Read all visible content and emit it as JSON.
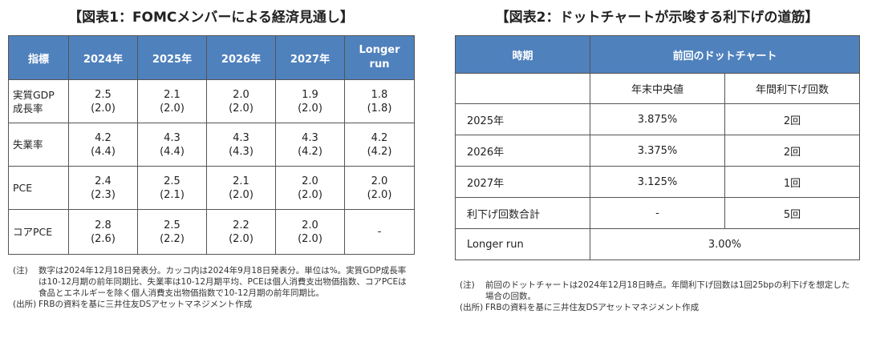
{
  "figure1": {
    "title": "【図表1：FOMCメンバーによる経済見通し】",
    "headers": [
      "指標",
      "2024年",
      "2025年",
      "2026年",
      "2027年",
      "Longer run"
    ],
    "rows": [
      {
        "label": "実質GDP成長率",
        "values": [
          [
            "2.5",
            "(2.0)"
          ],
          [
            "2.1",
            "(2.0)"
          ],
          [
            "2.0",
            "(2.0)"
          ],
          [
            "1.9",
            "(2.0)"
          ],
          [
            "1.8",
            "(1.8)"
          ]
        ]
      },
      {
        "label": "失業率",
        "values": [
          [
            "4.2",
            "(4.4)"
          ],
          [
            "4.3",
            "(4.4)"
          ],
          [
            "4.3",
            "(4.3)"
          ],
          [
            "4.3",
            "(4.2)"
          ],
          [
            "4.2",
            "(4.2)"
          ]
        ]
      },
      {
        "label": "PCE",
        "values": [
          [
            "2.4",
            "(2.3)"
          ],
          [
            "2.5",
            "(2.1)"
          ],
          [
            "2.1",
            "(2.0)"
          ],
          [
            "2.0",
            "(2.0)"
          ],
          [
            "2.0",
            "(2.0)"
          ]
        ]
      },
      {
        "label": "コアPCE",
        "values": [
          [
            "2.8",
            "(2.6)"
          ],
          [
            "2.5",
            "(2.2)"
          ],
          [
            "2.2",
            "(2.0)"
          ],
          [
            "2.0",
            "(2.0)"
          ],
          [
            "-",
            ""
          ]
        ]
      }
    ],
    "note_label": "(注)",
    "note_text": "数字は2024年12月18日発表分。カッコ内は2024年9月18日発表分。単位は%。実質GDP成長率は10-12月期の前年同期比、失業率は10-12月期平均、PCEは個人消費支出物価指数、コアPCEは食品とエネルギーを除く個人消費支出物価指数で10-12月期の前年同期比。",
    "source_label": "(出所)",
    "source_text": "FRBの資料を基に三井住友DSアセットマネジメント作成"
  },
  "figure2": {
    "title": "【図表2：ドットチャートが示唆する利下げの道筋】",
    "header_period": "時期",
    "header_group": "前回のドットチャート",
    "sub_headers": [
      "年末中央値",
      "年間利下げ回数"
    ],
    "rows": [
      {
        "label": "2025年",
        "median": "3.875%",
        "cuts": "2回"
      },
      {
        "label": "2026年",
        "median": "3.375%",
        "cuts": "2回"
      },
      {
        "label": "2027年",
        "median": "3.125%",
        "cuts": "1回"
      },
      {
        "label": "利下げ回数合計",
        "median": "-",
        "cuts": "5回"
      }
    ],
    "longer_run_label": "Longer run",
    "longer_run_value": "3.00%",
    "note_label": "(注)",
    "note_text": "前回のドットチャートは2024年12月18日時点。年間利下げ回数は1回25bpの利下げを想定した場合の回数。",
    "source_label": "(出所)",
    "source_text": "FRBの資料を基に三井住友DSアセットマネジメント作成"
  }
}
